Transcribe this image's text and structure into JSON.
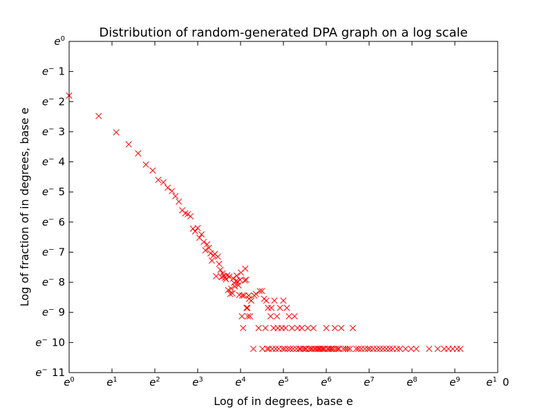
{
  "chart_data": {
    "type": "scatter",
    "title": "Distribution of random-generated DPA graph on a log scale",
    "xlabel": "Log of in degrees, base e",
    "ylabel": "Log of fraction of in degrees, base e",
    "xlim": [
      0,
      10
    ],
    "ylim": [
      -11,
      0
    ],
    "x_ticks": [
      {
        "value": 0,
        "label": "e^0",
        "base": "e",
        "sup": "0"
      },
      {
        "value": 1,
        "label": "e^1",
        "base": "e",
        "sup": "1"
      },
      {
        "value": 2,
        "label": "e^2",
        "base": "e",
        "sup": "2"
      },
      {
        "value": 3,
        "label": "e^3",
        "base": "e",
        "sup": "3"
      },
      {
        "value": 4,
        "label": "e^4",
        "base": "e",
        "sup": "4"
      },
      {
        "value": 5,
        "label": "e^5",
        "base": "e",
        "sup": "5"
      },
      {
        "value": 6,
        "label": "e^6",
        "base": "e",
        "sup": "6"
      },
      {
        "value": 7,
        "label": "e^7",
        "base": "e",
        "sup": "7"
      },
      {
        "value": 8,
        "label": "e^8",
        "base": "e",
        "sup": "8"
      },
      {
        "value": 9,
        "label": "e^9",
        "base": "e",
        "sup": "9"
      },
      {
        "value": 10,
        "label": "e^1 0",
        "base": "e",
        "sup": "1",
        "tail": "0"
      }
    ],
    "y_ticks": [
      {
        "value": 0,
        "label": "e^0",
        "base": "e",
        "sup": "0",
        "tail": ""
      },
      {
        "value": -1,
        "label": "e^- 1",
        "base": "e",
        "sup": "−",
        "tail": "1"
      },
      {
        "value": -2,
        "label": "e^- 2",
        "base": "e",
        "sup": "−",
        "tail": "2"
      },
      {
        "value": -3,
        "label": "e^- 3",
        "base": "e",
        "sup": "−",
        "tail": "3"
      },
      {
        "value": -4,
        "label": "e^- 4",
        "base": "e",
        "sup": "−",
        "tail": "4"
      },
      {
        "value": -5,
        "label": "e^- 5",
        "base": "e",
        "sup": "−",
        "tail": "5"
      },
      {
        "value": -6,
        "label": "e^- 6",
        "base": "e",
        "sup": "−",
        "tail": "6"
      },
      {
        "value": -7,
        "label": "e^- 7",
        "base": "e",
        "sup": "−",
        "tail": "7"
      },
      {
        "value": -8,
        "label": "e^- 8",
        "base": "e",
        "sup": "−",
        "tail": "8"
      },
      {
        "value": -9,
        "label": "e^- 9",
        "base": "e",
        "sup": "−",
        "tail": "9"
      },
      {
        "value": -10,
        "label": "e^- 10",
        "base": "e",
        "sup": "−",
        "tail": "10"
      },
      {
        "value": -11,
        "label": "e^- 11",
        "base": "e",
        "sup": "−",
        "tail": "11"
      }
    ],
    "marker": "x",
    "marker_color": "#ff0000",
    "grid": false,
    "series": [
      {
        "points": [
          [
            0.0,
            -1.8
          ],
          [
            0.69,
            -2.48
          ],
          [
            1.1,
            -3.02
          ],
          [
            1.39,
            -3.42
          ],
          [
            1.61,
            -3.72
          ],
          [
            1.79,
            -4.09
          ],
          [
            1.95,
            -4.29
          ],
          [
            2.08,
            -4.6
          ],
          [
            2.2,
            -4.68
          ],
          [
            2.3,
            -4.86
          ],
          [
            2.4,
            -4.97
          ],
          [
            2.48,
            -5.14
          ],
          [
            2.56,
            -5.32
          ],
          [
            2.64,
            -5.61
          ],
          [
            2.71,
            -5.71
          ],
          [
            2.77,
            -5.74
          ],
          [
            2.83,
            -5.81
          ],
          [
            2.89,
            -6.22
          ],
          [
            2.94,
            -6.31
          ],
          [
            3.0,
            -6.2
          ],
          [
            3.04,
            -6.52
          ],
          [
            3.09,
            -6.41
          ],
          [
            3.14,
            -6.66
          ],
          [
            3.18,
            -6.94
          ],
          [
            3.22,
            -6.74
          ],
          [
            3.26,
            -6.86
          ],
          [
            3.3,
            -7.04
          ],
          [
            3.33,
            -7.28
          ],
          [
            3.37,
            -7.11
          ],
          [
            3.4,
            -7.06
          ],
          [
            3.43,
            -7.8
          ],
          [
            3.47,
            -7.15
          ],
          [
            3.5,
            -7.39
          ],
          [
            3.53,
            -7.59
          ],
          [
            3.56,
            -7.83
          ],
          [
            3.58,
            -7.7
          ],
          [
            3.61,
            -7.79
          ],
          [
            3.64,
            -7.85
          ],
          [
            3.66,
            -7.9
          ],
          [
            3.69,
            -7.77
          ],
          [
            3.71,
            -8.26
          ],
          [
            3.74,
            -7.81
          ],
          [
            3.76,
            -8.39
          ],
          [
            3.78,
            -8.21
          ],
          [
            3.81,
            -8.37
          ],
          [
            3.83,
            -7.87
          ],
          [
            3.85,
            -8.02
          ],
          [
            3.87,
            -8.14
          ],
          [
            3.89,
            -7.96
          ],
          [
            3.91,
            -7.78
          ],
          [
            3.93,
            -7.98
          ],
          [
            3.95,
            -8.1
          ],
          [
            3.97,
            -8.42
          ],
          [
            3.99,
            -7.92
          ],
          [
            4.01,
            -7.68
          ],
          [
            4.03,
            -9.13
          ],
          [
            4.04,
            -8.44
          ],
          [
            4.06,
            -9.52
          ],
          [
            4.08,
            -8.44
          ],
          [
            4.1,
            -7.94
          ],
          [
            4.11,
            -7.55
          ],
          [
            4.13,
            -7.92
          ],
          [
            4.14,
            -8.85
          ],
          [
            4.16,
            -8.85
          ],
          [
            4.17,
            -9.13
          ],
          [
            4.19,
            -8.44
          ],
          [
            4.2,
            -8.55
          ],
          [
            4.22,
            -9.13
          ],
          [
            4.25,
            -8.61
          ],
          [
            4.3,
            -10.21
          ],
          [
            4.32,
            -8.44
          ],
          [
            4.36,
            -8.39
          ],
          [
            4.42,
            -9.52
          ],
          [
            4.45,
            -8.29
          ],
          [
            4.5,
            -8.29
          ],
          [
            4.51,
            -10.21
          ],
          [
            4.55,
            -8.55
          ],
          [
            4.58,
            -9.52
          ],
          [
            4.6,
            -8.61
          ],
          [
            4.62,
            -10.21
          ],
          [
            4.64,
            -8.85
          ],
          [
            4.66,
            -10.21
          ],
          [
            4.7,
            -9.13
          ],
          [
            4.72,
            -8.85
          ],
          [
            4.74,
            -10.21
          ],
          [
            4.77,
            -9.52
          ],
          [
            4.79,
            -8.61
          ],
          [
            4.82,
            -10.21
          ],
          [
            4.85,
            -9.13
          ],
          [
            4.87,
            -9.52
          ],
          [
            4.89,
            -10.21
          ],
          [
            4.92,
            -8.85
          ],
          [
            4.96,
            -9.52
          ],
          [
            4.98,
            -10.21
          ],
          [
            5.0,
            -8.61
          ],
          [
            5.03,
            -10.21
          ],
          [
            5.05,
            -9.52
          ],
          [
            5.08,
            -8.85
          ],
          [
            5.1,
            -10.21
          ],
          [
            5.13,
            -9.13
          ],
          [
            5.16,
            -10.21
          ],
          [
            5.2,
            -9.52
          ],
          [
            5.23,
            -10.21
          ],
          [
            5.26,
            -9.13
          ],
          [
            5.3,
            -10.21
          ],
          [
            5.33,
            -9.52
          ],
          [
            5.37,
            -10.21
          ],
          [
            5.4,
            -10.21
          ],
          [
            5.43,
            -9.52
          ],
          [
            5.46,
            -10.21
          ],
          [
            5.5,
            -10.21
          ],
          [
            5.53,
            -10.21
          ],
          [
            5.57,
            -9.52
          ],
          [
            5.6,
            -10.21
          ],
          [
            5.64,
            -10.21
          ],
          [
            5.67,
            -10.21
          ],
          [
            5.7,
            -9.52
          ],
          [
            5.73,
            -10.21
          ],
          [
            5.76,
            -10.21
          ],
          [
            5.8,
            -10.21
          ],
          [
            5.83,
            -10.21
          ],
          [
            5.86,
            -10.21
          ],
          [
            5.9,
            -10.21
          ],
          [
            5.93,
            -10.21
          ],
          [
            5.96,
            -10.21
          ],
          [
            6.0,
            -9.52
          ],
          [
            6.03,
            -10.21
          ],
          [
            6.06,
            -10.21
          ],
          [
            6.1,
            -10.21
          ],
          [
            6.13,
            -10.21
          ],
          [
            6.17,
            -10.21
          ],
          [
            6.2,
            -9.52
          ],
          [
            6.23,
            -10.21
          ],
          [
            6.27,
            -10.21
          ],
          [
            6.3,
            -10.21
          ],
          [
            6.35,
            -9.52
          ],
          [
            6.4,
            -10.21
          ],
          [
            6.45,
            -10.21
          ],
          [
            6.5,
            -10.21
          ],
          [
            6.55,
            -10.21
          ],
          [
            6.62,
            -9.52
          ],
          [
            6.7,
            -10.21
          ],
          [
            6.75,
            -10.21
          ],
          [
            6.82,
            -10.21
          ],
          [
            6.9,
            -10.21
          ],
          [
            6.97,
            -10.21
          ],
          [
            7.02,
            -10.21
          ],
          [
            7.1,
            -10.21
          ],
          [
            7.18,
            -10.21
          ],
          [
            7.25,
            -10.21
          ],
          [
            7.33,
            -10.21
          ],
          [
            7.4,
            -10.21
          ],
          [
            7.48,
            -10.21
          ],
          [
            7.55,
            -10.21
          ],
          [
            7.65,
            -10.21
          ],
          [
            7.72,
            -10.21
          ],
          [
            7.85,
            -10.21
          ],
          [
            7.98,
            -10.21
          ],
          [
            8.1,
            -10.21
          ],
          [
            8.4,
            -10.21
          ],
          [
            8.6,
            -10.21
          ],
          [
            8.75,
            -10.21
          ],
          [
            8.85,
            -10.21
          ],
          [
            8.95,
            -10.21
          ],
          [
            9.05,
            -10.21
          ],
          [
            9.13,
            -10.21
          ]
        ]
      }
    ]
  }
}
